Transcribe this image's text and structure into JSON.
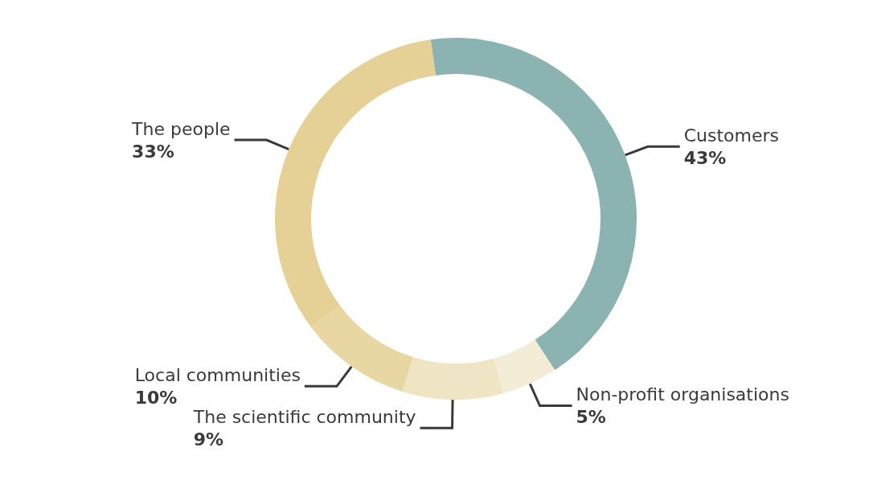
{
  "chart_data": {
    "type": "donut",
    "categories": [
      "Customers",
      "Non-profit organisations",
      "The scientific community",
      "Local communities",
      "The people"
    ],
    "values": [
      43,
      5,
      9,
      10,
      33
    ],
    "value_labels": [
      "43%",
      "5%",
      "9%",
      "10%",
      "33%"
    ],
    "colors": [
      "#8bb3b2",
      "#f3ecd6",
      "#efe4c4",
      "#e9d7a3",
      "#e5d196"
    ]
  }
}
